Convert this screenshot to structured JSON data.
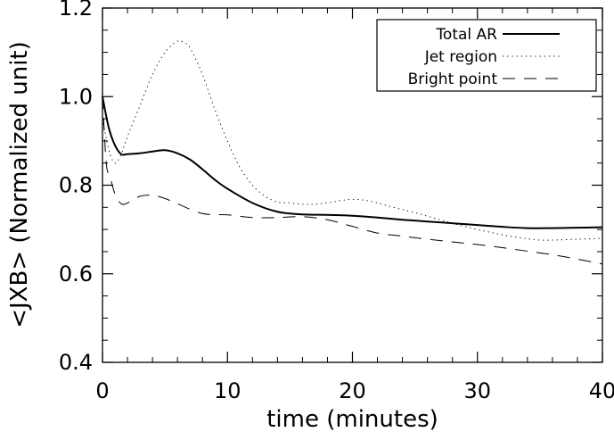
{
  "chart_data": {
    "type": "line",
    "title": "",
    "xlabel": "time (minutes)",
    "ylabel": "<JXB> (Normalized unit)",
    "xlim": [
      0,
      40
    ],
    "ylim": [
      0.4,
      1.2
    ],
    "xticks": [
      0,
      10,
      20,
      30,
      40
    ],
    "yticks": [
      0.4,
      0.6,
      0.8,
      1.0,
      1.2
    ],
    "xtick_labels": [
      "0",
      "10",
      "20",
      "30",
      "40"
    ],
    "ytick_labels": [
      "0.4",
      "0.6",
      "0.8",
      "1.0",
      "1.2"
    ],
    "grid": false,
    "legend_position": "top-right",
    "series": [
      {
        "name": "Total AR",
        "style": "solid",
        "color": "#000000",
        "x": [
          0,
          0.5,
          1,
          1.5,
          2,
          3,
          4,
          5,
          6,
          7,
          8,
          9,
          10,
          12,
          14,
          16,
          18,
          20,
          22,
          24,
          26,
          28,
          30,
          32,
          34,
          36,
          38,
          40
        ],
        "y": [
          1.0,
          0.93,
          0.89,
          0.87,
          0.87,
          0.872,
          0.876,
          0.879,
          0.872,
          0.858,
          0.836,
          0.812,
          0.792,
          0.76,
          0.74,
          0.734,
          0.733,
          0.731,
          0.727,
          0.722,
          0.718,
          0.714,
          0.71,
          0.706,
          0.703,
          0.703,
          0.704,
          0.705
        ]
      },
      {
        "name": "Jet region",
        "style": "dotted",
        "color": "#000000",
        "x": [
          0,
          0.5,
          1,
          1.5,
          2,
          3,
          4,
          5,
          6,
          6.5,
          7,
          8,
          9,
          10,
          11,
          12,
          13,
          14,
          15,
          16,
          17,
          18,
          19,
          20,
          21,
          22,
          23,
          24,
          25,
          26,
          27,
          28,
          30,
          32,
          34,
          35,
          36,
          38,
          40
        ],
        "y": [
          0.95,
          0.88,
          0.85,
          0.87,
          0.91,
          0.98,
          1.05,
          1.1,
          1.125,
          1.122,
          1.11,
          1.05,
          0.97,
          0.9,
          0.84,
          0.8,
          0.775,
          0.762,
          0.76,
          0.757,
          0.757,
          0.76,
          0.765,
          0.768,
          0.766,
          0.76,
          0.752,
          0.745,
          0.738,
          0.73,
          0.722,
          0.714,
          0.7,
          0.688,
          0.679,
          0.676,
          0.676,
          0.678,
          0.68
        ]
      },
      {
        "name": "Bright point",
        "style": "dashed",
        "color": "#000000",
        "x": [
          0,
          0.3,
          0.6,
          1,
          1.5,
          2,
          3,
          4,
          5,
          6,
          8,
          10,
          12,
          14,
          16,
          18,
          20,
          22,
          24,
          26,
          28,
          30,
          32,
          34,
          36,
          38,
          40
        ],
        "y": [
          1.0,
          0.85,
          0.82,
          0.78,
          0.758,
          0.76,
          0.775,
          0.777,
          0.77,
          0.758,
          0.736,
          0.733,
          0.727,
          0.727,
          0.729,
          0.722,
          0.707,
          0.692,
          0.685,
          0.678,
          0.672,
          0.666,
          0.659,
          0.651,
          0.643,
          0.633,
          0.622
        ]
      }
    ]
  }
}
